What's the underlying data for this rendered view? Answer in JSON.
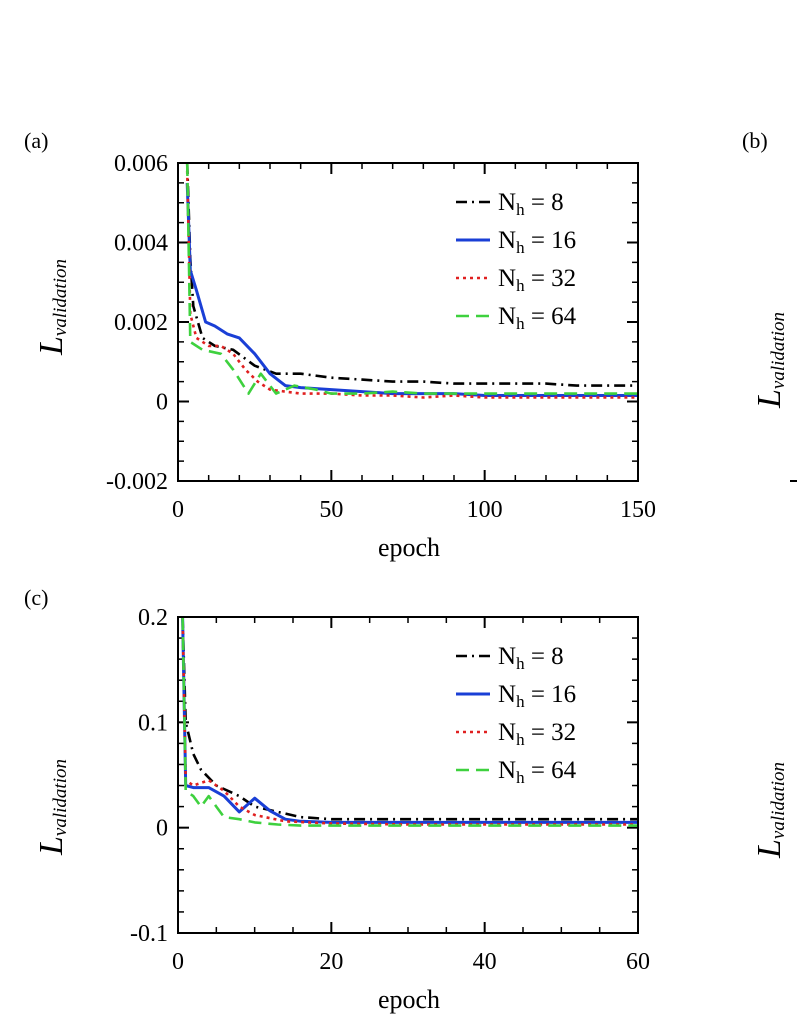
{
  "chart_data": [
    {
      "panel_label": "(a)",
      "type": "line",
      "xlabel": "epoch",
      "ylabel": "L",
      "ylabel_sub": "validation",
      "xlim": [
        0,
        150
      ],
      "ylim": [
        -0.002,
        0.006
      ],
      "xticks": [
        0,
        50,
        100,
        150
      ],
      "xtick_labels": [
        "0",
        "50",
        "100",
        "150"
      ],
      "yticks": [
        -0.002,
        0,
        0.002,
        0.004,
        0.006
      ],
      "ytick_labels": [
        "-0.002",
        "0",
        "0.002",
        "0.004",
        "0.006"
      ],
      "legend_position": "top-right",
      "series": [
        {
          "name": "N_h = 8",
          "label_main": "N",
          "label_sub": "h",
          "label_rest": " = 8",
          "color": "#000000",
          "style": "dashdot",
          "x": [
            3,
            4,
            5,
            8,
            12,
            18,
            25,
            32,
            40,
            50,
            60,
            70,
            80,
            90,
            100,
            110,
            120,
            130,
            140,
            150
          ],
          "y": [
            0.006,
            0.0036,
            0.0024,
            0.0016,
            0.0014,
            0.0013,
            0.0009,
            0.0007,
            0.0007,
            0.0006,
            0.00055,
            0.0005,
            0.0005,
            0.00045,
            0.00045,
            0.00045,
            0.00045,
            0.0004,
            0.0004,
            0.0004
          ]
        },
        {
          "name": "N_h = 16",
          "label_main": "N",
          "label_sub": "h",
          "label_rest": " = 16",
          "color": "#1a3fd6",
          "style": "solid",
          "x": [
            3,
            4,
            6,
            9,
            12,
            16,
            20,
            25,
            30,
            35,
            40,
            50,
            60,
            70,
            80,
            90,
            100,
            120,
            150
          ],
          "y": [
            0.0055,
            0.0033,
            0.0028,
            0.002,
            0.0019,
            0.0017,
            0.0016,
            0.0012,
            0.0007,
            0.0004,
            0.00035,
            0.0003,
            0.00025,
            0.0002,
            0.0002,
            0.0002,
            0.00015,
            0.00015,
            0.00015
          ]
        },
        {
          "name": "N_h = 32",
          "label_main": "N",
          "label_sub": "h",
          "label_rest": " = 32",
          "color": "#e02020",
          "style": "dotted",
          "x": [
            3,
            4,
            6,
            10,
            14,
            18,
            22,
            26,
            30,
            35,
            40,
            45,
            50,
            60,
            70,
            80,
            90,
            100,
            120,
            150
          ],
          "y": [
            0.0058,
            0.0022,
            0.0016,
            0.0014,
            0.0014,
            0.0012,
            0.0008,
            0.0005,
            0.0003,
            0.00025,
            0.0002,
            0.0002,
            0.0002,
            0.00015,
            0.00015,
            0.0001,
            0.00015,
            0.0001,
            0.0001,
            0.0001
          ]
        },
        {
          "name": "N_h = 64",
          "label_main": "N",
          "label_sub": "h",
          "label_rest": " = 64",
          "color": "#3ed13e",
          "style": "dashed",
          "x": [
            3,
            4,
            8,
            14,
            18,
            23,
            27,
            32,
            38,
            45,
            50,
            60,
            70,
            80,
            100,
            120,
            150
          ],
          "y": [
            0.006,
            0.0015,
            0.0013,
            0.0012,
            0.0008,
            0.0002,
            0.0007,
            0.0002,
            0.0004,
            0.0003,
            0.0002,
            0.0002,
            0.00025,
            0.0002,
            0.0002,
            0.0002,
            0.0002
          ]
        }
      ]
    },
    {
      "panel_label": "(c)",
      "type": "line",
      "xlabel": "epoch",
      "ylabel": "L",
      "ylabel_sub": "validation",
      "xlim": [
        0,
        60
      ],
      "ylim": [
        -0.1,
        0.2
      ],
      "xticks": [
        0,
        20,
        40,
        60
      ],
      "xtick_labels": [
        "0",
        "20",
        "40",
        "60"
      ],
      "yticks": [
        -0.1,
        0,
        0.1,
        0.2
      ],
      "ytick_labels": [
        "-0.1",
        "0",
        "0.1",
        "0.2"
      ],
      "legend_position": "top-right",
      "series": [
        {
          "name": "N_h = 8",
          "label_main": "N",
          "label_sub": "h",
          "label_rest": " = 8",
          "color": "#000000",
          "style": "dashdot",
          "x": [
            0.6,
            1,
            1.5,
            2,
            3,
            5,
            8,
            10,
            13,
            16,
            20,
            25,
            30,
            40,
            50,
            60
          ],
          "y": [
            0.2,
            0.1,
            0.085,
            0.07,
            0.055,
            0.04,
            0.03,
            0.02,
            0.015,
            0.01,
            0.008,
            0.008,
            0.008,
            0.008,
            0.008,
            0.008
          ]
        },
        {
          "name": "N_h = 16",
          "label_main": "N",
          "label_sub": "h",
          "label_rest": " = 16",
          "color": "#1a3fd6",
          "style": "solid",
          "x": [
            0.6,
            1,
            2,
            4,
            6,
            8,
            10,
            12,
            14,
            16,
            20,
            30,
            40,
            50,
            60
          ],
          "y": [
            0.2,
            0.04,
            0.038,
            0.038,
            0.03,
            0.015,
            0.028,
            0.016,
            0.008,
            0.006,
            0.005,
            0.005,
            0.005,
            0.005,
            0.005
          ]
        },
        {
          "name": "N_h = 32",
          "label_main": "N",
          "label_sub": "h",
          "label_rest": " = 32",
          "color": "#e02020",
          "style": "dotted",
          "x": [
            0.6,
            1,
            2,
            4,
            6,
            8,
            10,
            14,
            20,
            30,
            40,
            50,
            60
          ],
          "y": [
            0.2,
            0.045,
            0.04,
            0.045,
            0.035,
            0.02,
            0.012,
            0.006,
            0.004,
            0.003,
            0.003,
            0.003,
            0.003
          ]
        },
        {
          "name": "N_h = 64",
          "label_main": "N",
          "label_sub": "h",
          "label_rest": " = 64",
          "color": "#3ed13e",
          "style": "dashed",
          "x": [
            0.6,
            1,
            2,
            3,
            4,
            5,
            6,
            8,
            10,
            13,
            16,
            20,
            30,
            40,
            50,
            60
          ],
          "y": [
            0.2,
            0.035,
            0.03,
            0.02,
            0.03,
            0.02,
            0.01,
            0.008,
            0.005,
            0.003,
            0.002,
            0.002,
            0.002,
            0.002,
            0.002,
            0.002
          ]
        }
      ]
    }
  ],
  "partial_panels": [
    {
      "panel_label": "(b)",
      "ylabel": "L",
      "ylabel_sub": "validation"
    },
    {
      "ylabel": "L",
      "ylabel_sub": "validation"
    }
  ]
}
